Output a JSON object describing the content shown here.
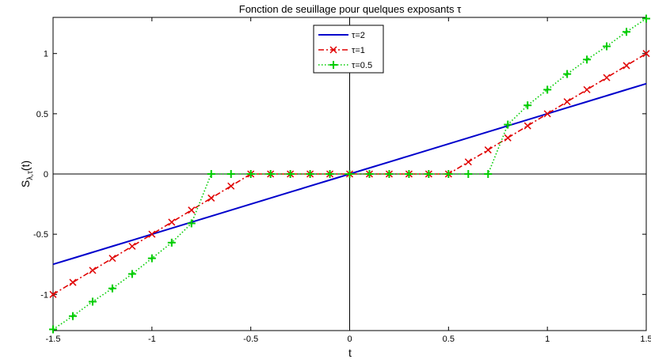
{
  "chart_data": {
    "type": "line",
    "title": "Fonction de seuillage pour quelques exposants τ",
    "xlabel": "t",
    "ylabel_main": "S",
    "ylabel_sub": "λ,τ",
    "ylabel_suffix": "(t)",
    "xlim": [
      -1.5,
      1.5
    ],
    "ylim": [
      -1.3,
      1.3
    ],
    "xticks": [
      -1.5,
      -1,
      -0.5,
      0,
      0.5,
      1,
      1.5
    ],
    "xtick_labels": [
      "-1.5",
      "-1",
      "-0.5",
      "0",
      "0.5",
      "1",
      "1.5"
    ],
    "yticks": [
      -1,
      -0.5,
      0,
      0.5,
      1
    ],
    "ytick_labels": [
      "-1",
      "-0.5",
      "0",
      "0.5",
      "1"
    ],
    "grid": false,
    "legend_position": "top-center",
    "series": [
      {
        "name": "τ=2",
        "color": "#0000cc",
        "line_style": "solid",
        "marker": "none",
        "x": [
          -1.5,
          -1.4,
          -1.3,
          -1.2,
          -1.1,
          -1.0,
          -0.9,
          -0.8,
          -0.7,
          -0.6,
          -0.5,
          -0.4,
          -0.3,
          -0.2,
          -0.1,
          0,
          0.1,
          0.2,
          0.3,
          0.4,
          0.5,
          0.6,
          0.7,
          0.8,
          0.9,
          1.0,
          1.1,
          1.2,
          1.3,
          1.4,
          1.5
        ],
        "y": [
          -0.75,
          -0.7,
          -0.65,
          -0.6,
          -0.55,
          -0.5,
          -0.45,
          -0.4,
          -0.35,
          -0.3,
          -0.25,
          -0.2,
          -0.15,
          -0.1,
          -0.05,
          0,
          0.05,
          0.1,
          0.15,
          0.2,
          0.25,
          0.3,
          0.35,
          0.4,
          0.45,
          0.5,
          0.55,
          0.6,
          0.65,
          0.7,
          0.75
        ]
      },
      {
        "name": "τ=1",
        "color": "#e00000",
        "line_style": "dashdot",
        "marker": "x",
        "x": [
          -1.5,
          -1.4,
          -1.3,
          -1.2,
          -1.1,
          -1.0,
          -0.9,
          -0.8,
          -0.7,
          -0.6,
          -0.5,
          -0.4,
          -0.3,
          -0.2,
          -0.1,
          0,
          0.1,
          0.2,
          0.3,
          0.4,
          0.5,
          0.6,
          0.7,
          0.8,
          0.9,
          1.0,
          1.1,
          1.2,
          1.3,
          1.4,
          1.5
        ],
        "y": [
          -1.0,
          -0.9,
          -0.8,
          -0.7,
          -0.6,
          -0.5,
          -0.4,
          -0.3,
          -0.2,
          -0.1,
          0,
          0,
          0,
          0,
          0,
          0,
          0,
          0,
          0,
          0,
          0,
          0.1,
          0.2,
          0.3,
          0.4,
          0.5,
          0.6,
          0.7,
          0.8,
          0.9,
          1.0
        ]
      },
      {
        "name": "τ=0.5",
        "color": "#00cc00",
        "line_style": "dotted",
        "marker": "+",
        "x": [
          -1.5,
          -1.4,
          -1.3,
          -1.2,
          -1.1,
          -1.0,
          -0.9,
          -0.8,
          -0.7,
          -0.6,
          -0.5,
          -0.4,
          -0.3,
          -0.2,
          -0.1,
          0,
          0.1,
          0.2,
          0.3,
          0.4,
          0.5,
          0.6,
          0.7,
          0.8,
          0.9,
          1.0,
          1.1,
          1.2,
          1.3,
          1.4,
          1.5
        ],
        "y": [
          -1.29,
          -1.18,
          -1.06,
          -0.95,
          -0.83,
          -0.7,
          -0.57,
          -0.41,
          0,
          0,
          0,
          0,
          0,
          0,
          0,
          0,
          0,
          0,
          0,
          0,
          0,
          0,
          0,
          0.41,
          0.57,
          0.7,
          0.83,
          0.95,
          1.06,
          1.18,
          1.29
        ]
      }
    ]
  }
}
